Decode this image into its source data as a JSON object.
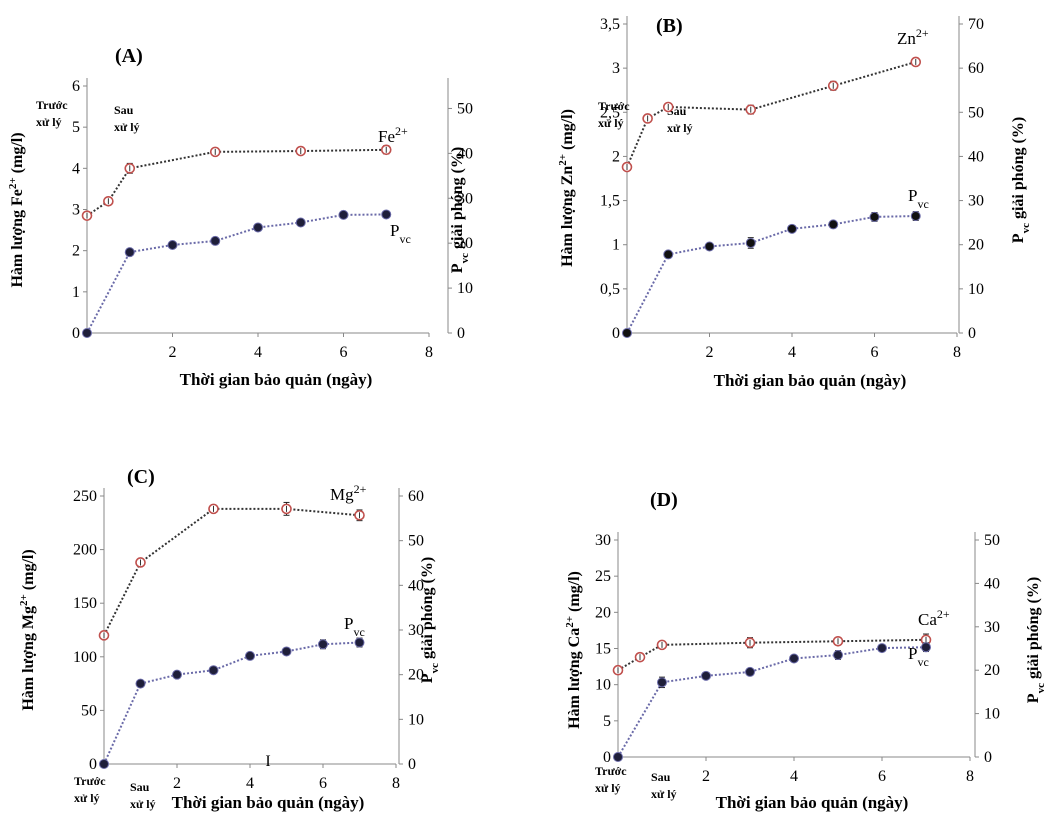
{
  "chart_data": [
    {
      "type": "line",
      "panel_label": "(A)",
      "xlabel": "Thời gian bảo quản (ngày)",
      "xticks": [
        2,
        4,
        6,
        8
      ],
      "x_category_labels": [
        [
          "Trước",
          "xử lý"
        ],
        [
          "Sau",
          "xử lý"
        ]
      ],
      "xlim": [
        0,
        8
      ],
      "ylabel_left": [
        "Hàm lượng Fe",
        "2+",
        " (mg/l)"
      ],
      "ylabel_right": [
        "P",
        "vc",
        " giải phóng (%)"
      ],
      "ylim_left": [
        0,
        6
      ],
      "yticks_left": [
        0,
        1,
        2,
        3,
        4,
        5,
        6
      ],
      "ylim_right": [
        0,
        55
      ],
      "yticks_right": [
        0,
        10,
        20,
        30,
        40,
        50
      ],
      "series": [
        {
          "name": "Fe",
          "name_sup": "2+",
          "axis": "left",
          "marker": "open",
          "color": "#c0504d",
          "x": [
            0,
            0.5,
            1,
            3,
            5,
            7
          ],
          "y": [
            2.85,
            3.2,
            4.0,
            4.4,
            4.42,
            4.45
          ],
          "err": [
            0.08,
            0.08,
            0.12,
            0.05,
            0.08,
            0.1
          ]
        },
        {
          "name": "P",
          "name_sub": "vc",
          "axis": "right",
          "marker": "filled",
          "color": "#1f1f3a",
          "x": [
            0,
            1,
            2,
            3,
            4,
            5,
            6,
            7
          ],
          "y": [
            0,
            18,
            19.6,
            20.5,
            23.5,
            24.6,
            26.3,
            26.4
          ],
          "err": [
            0,
            0,
            0,
            0,
            0,
            0,
            0,
            0
          ]
        }
      ]
    },
    {
      "type": "line",
      "panel_label": "(B)",
      "xlabel": "Thời gian bảo quản (ngày)",
      "xticks": [
        2,
        4,
        6,
        8
      ],
      "x_category_labels": [
        [
          "Trước",
          "xử lý"
        ],
        [
          "Sau",
          "xử lý"
        ]
      ],
      "xlim": [
        0,
        8
      ],
      "ylabel_left": [
        "Hàm lượng Zn",
        "2+",
        " (mg/l)"
      ],
      "ylabel_right": [
        "P",
        "vc",
        " giải phóng (%)"
      ],
      "ylim_left": [
        0,
        3.5
      ],
      "yticks_left": [
        "0",
        "0,5",
        "1",
        "1,5",
        "2",
        "2,5",
        "3",
        "3,5"
      ],
      "ylim_right": [
        0,
        70
      ],
      "yticks_right": [
        0,
        10,
        20,
        30,
        40,
        50,
        60,
        70
      ],
      "series": [
        {
          "name": "Zn",
          "name_sup": "2+",
          "axis": "left",
          "marker": "open",
          "color": "#c0504d",
          "x": [
            0,
            0.5,
            1,
            3,
            5,
            7
          ],
          "y": [
            1.88,
            2.43,
            2.56,
            2.53,
            2.8,
            3.07
          ],
          "err": [
            0.02,
            0.02,
            0.02,
            0.05,
            0.05,
            0.04
          ]
        },
        {
          "name": "P",
          "name_sub": "vc",
          "axis": "right",
          "marker": "filled",
          "color": "#111111",
          "x": [
            0,
            1,
            2,
            3,
            4,
            5,
            6,
            7
          ],
          "y": [
            0,
            17.8,
            19.6,
            20.4,
            23.6,
            24.6,
            26.3,
            26.5
          ],
          "err": [
            0,
            0.6,
            0.4,
            1.2,
            0.4,
            0.4,
            1.0,
            1.0
          ]
        }
      ]
    },
    {
      "type": "line",
      "panel_label": "(C)",
      "xlabel": "Thời gian bảo quản (ngày)",
      "xticks": [
        2,
        4,
        6,
        8
      ],
      "x_category_labels": [
        [
          "Trước",
          "xử lý"
        ],
        [
          "Sau",
          "xử lý"
        ]
      ],
      "xlim": [
        0,
        8
      ],
      "ylabel_left": [
        "Hàm lượng Mg",
        "2+",
        " (mg/l)"
      ],
      "ylabel_right": [
        "P",
        "vc",
        " giải phóng (%)"
      ],
      "ylim_left": [
        0,
        250
      ],
      "yticks_left": [
        0,
        50,
        100,
        150,
        200,
        250
      ],
      "ylim_right": [
        0,
        60
      ],
      "yticks_right": [
        0,
        10,
        20,
        30,
        40,
        50,
        60
      ],
      "stray_mark": "I",
      "series": [
        {
          "name": "Mg",
          "name_sup": "2+",
          "axis": "left",
          "marker": "open",
          "color": "#c0504d",
          "x": [
            0,
            1,
            3,
            5,
            7
          ],
          "y": [
            120,
            188,
            238,
            238,
            232
          ],
          "err": [
            2,
            3,
            2,
            6,
            5
          ]
        },
        {
          "name": "P",
          "name_sub": "vc",
          "axis": "right",
          "marker": "filled",
          "color": "#1f1f3a",
          "x": [
            0,
            1,
            2,
            3,
            4,
            5,
            6,
            7
          ],
          "y": [
            0,
            18,
            20,
            21,
            24.2,
            25.2,
            26.8,
            27.2
          ],
          "err": [
            0,
            0,
            0,
            0,
            0,
            0,
            1.0,
            1.0
          ]
        }
      ]
    },
    {
      "type": "line",
      "panel_label": "(D)",
      "xlabel": "Thời gian bảo quản (ngày)",
      "xticks": [
        2,
        4,
        6,
        8
      ],
      "x_category_labels": [
        [
          "Trước",
          "xử lý"
        ],
        [
          "Sau",
          "xử lý"
        ]
      ],
      "xlim": [
        0,
        8
      ],
      "ylabel_left": [
        "Hàm lượng Ca",
        "2+",
        " (mg/l)"
      ],
      "ylabel_right": [
        "P",
        "vc",
        " giải phóng (%)"
      ],
      "ylim_left": [
        0,
        30
      ],
      "yticks_left": [
        0,
        5,
        10,
        15,
        20,
        25,
        30
      ],
      "ylim_right": [
        0,
        50
      ],
      "yticks_right": [
        0,
        10,
        20,
        30,
        40,
        50
      ],
      "series": [
        {
          "name": "Ca",
          "name_sup": "2+",
          "axis": "left",
          "marker": "open",
          "color": "#c0504d",
          "x": [
            0,
            0.5,
            1,
            3,
            5,
            7
          ],
          "y": [
            12,
            13.8,
            15.5,
            15.8,
            16,
            16.2
          ],
          "err": [
            0.3,
            0.2,
            0.5,
            0.7,
            0.3,
            0.8
          ]
        },
        {
          "name": "P",
          "name_sub": "vc",
          "axis": "right",
          "marker": "filled",
          "color": "#1f1f3a",
          "x": [
            0,
            1,
            2,
            3,
            4,
            5,
            6,
            7
          ],
          "y": [
            0,
            17.2,
            18.7,
            19.6,
            22.7,
            23.5,
            25.1,
            25.3
          ],
          "err": [
            0,
            1.2,
            0,
            0,
            0,
            1.0,
            0,
            1.0
          ]
        }
      ]
    }
  ]
}
